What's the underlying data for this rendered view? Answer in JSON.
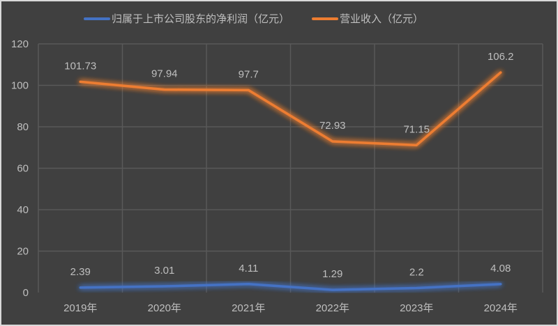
{
  "chart_data": {
    "type": "line",
    "title": "",
    "xlabel": "",
    "ylabel": "",
    "categories": [
      "2019年",
      "2020年",
      "2021年",
      "2022年",
      "2023年",
      "2024年"
    ],
    "series": [
      {
        "name": "归属于上市公司股东的净利润（亿元）",
        "color": "#4472c4",
        "values": [
          2.39,
          3.01,
          4.11,
          1.29,
          2.2,
          4.08
        ],
        "labels": [
          "2.39",
          "3.01",
          "4.11",
          "1.29",
          "2.2",
          "4.08"
        ]
      },
      {
        "name": "营业收入（亿元）",
        "color": "#ed7d31",
        "values": [
          101.73,
          97.94,
          97.7,
          72.93,
          71.15,
          106.2
        ],
        "labels": [
          "101.73",
          "97.94",
          "97.7",
          "72.93",
          "71.15",
          "106.2"
        ]
      }
    ],
    "ylim": [
      0,
      120
    ],
    "yticks": [
      "0",
      "20",
      "40",
      "60",
      "80",
      "100",
      "120"
    ],
    "grid": true,
    "legend_position": "top",
    "background": "#404040"
  }
}
